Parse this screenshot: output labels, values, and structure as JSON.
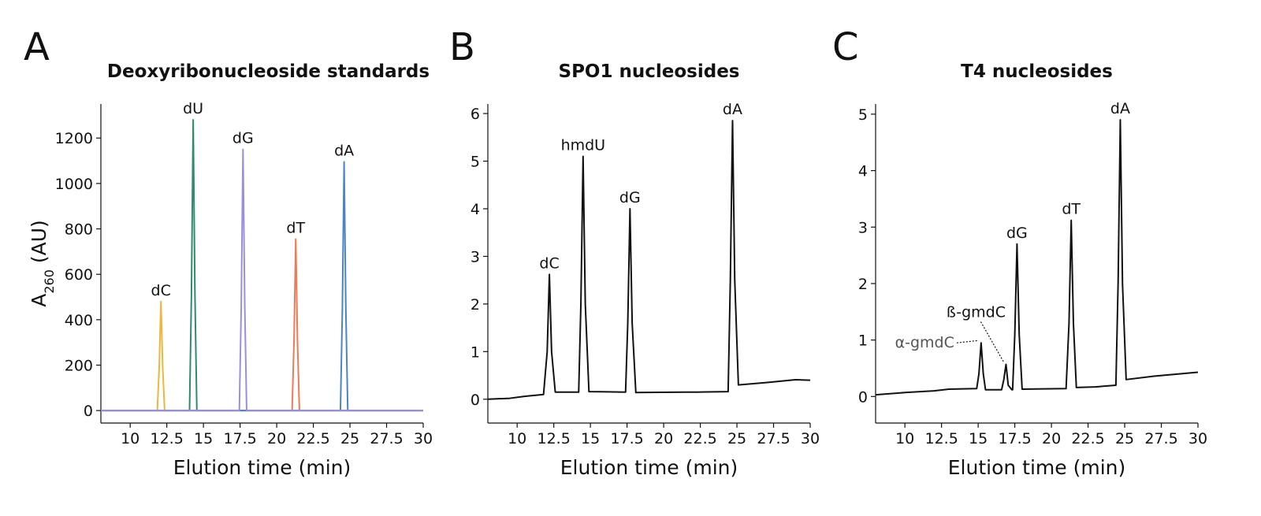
{
  "chart_data": [
    {
      "type": "line",
      "panel": "A",
      "title": "Deoxyribonucleoside standards",
      "xlabel": "Elution time (min)",
      "ylabel": [
        "A",
        "260",
        " (AU)"
      ],
      "xlim": [
        8,
        30
      ],
      "xticks": [
        10,
        12.5,
        15,
        17.5,
        20,
        22.5,
        25,
        27.5,
        30
      ],
      "ylim": [
        -55,
        1350
      ],
      "yticks": [
        0,
        200,
        400,
        600,
        800,
        1000,
        1200
      ],
      "series": [
        {
          "name": "dC",
          "color": "#f0b53c",
          "x": [
            8,
            11.85,
            11.98,
            12.1,
            12.22,
            12.35,
            30
          ],
          "values": [
            0,
            0,
            190,
            480,
            190,
            0,
            0
          ]
        },
        {
          "name": "dU",
          "color": "#2e8b6e",
          "x": [
            8,
            14.05,
            14.18,
            14.3,
            14.42,
            14.55,
            30
          ],
          "values": [
            0,
            0,
            510,
            1280,
            510,
            0,
            0
          ]
        },
        {
          "name": "dT",
          "color": "#ee7b55",
          "x": [
            8,
            21.05,
            21.18,
            21.3,
            21.42,
            21.55,
            30
          ],
          "values": [
            0,
            0,
            300,
            755,
            300,
            0,
            0
          ]
        },
        {
          "name": "dA",
          "color": "#4a86c5",
          "x": [
            8,
            24.35,
            24.48,
            24.6,
            24.72,
            24.85,
            30
          ],
          "values": [
            0,
            0,
            440,
            1095,
            440,
            0,
            0
          ]
        },
        {
          "name": "dG",
          "color": "#9b8fdc",
          "x": [
            8,
            17.45,
            17.58,
            17.7,
            17.82,
            17.95,
            30
          ],
          "values": [
            0,
            0,
            460,
            1150,
            460,
            0,
            0
          ]
        }
      ]
    },
    {
      "type": "line",
      "panel": "B",
      "title": "SPO1 nucleosides",
      "xlabel": "Elution time (min)",
      "xlim": [
        8,
        30
      ],
      "xticks": [
        10,
        12.5,
        15,
        17.5,
        20,
        22.5,
        25,
        27.5,
        30
      ],
      "ylim": [
        -0.5,
        6.2
      ],
      "yticks": [
        0,
        1,
        2,
        3,
        4,
        5,
        6
      ],
      "series": [
        {
          "color": "#111111",
          "x": [
            8,
            9.5,
            10.5,
            11.8,
            12.05,
            12.2,
            12.35,
            12.6,
            14.2,
            14.35,
            14.5,
            14.65,
            14.9,
            17.4,
            17.55,
            17.7,
            17.85,
            18.1,
            21.5,
            22.3,
            24.4,
            24.55,
            24.7,
            24.85,
            25.1,
            27,
            29,
            30
          ],
          "values": [
            0,
            0.02,
            0.06,
            0.1,
            1.0,
            2.62,
            1.0,
            0.15,
            0.15,
            2.0,
            5.1,
            2.0,
            0.16,
            0.15,
            1.6,
            4.0,
            1.6,
            0.14,
            0.15,
            0.15,
            0.16,
            2.5,
            5.85,
            2.5,
            0.3,
            0.35,
            0.41,
            0.4
          ]
        }
      ],
      "annotations": [
        {
          "text": "dC",
          "x": 12.2,
          "y": 2.62
        },
        {
          "text": "hmdU",
          "x": 14.5,
          "y": 5.1
        },
        {
          "text": "dG",
          "x": 17.7,
          "y": 4.0
        },
        {
          "text": "dA",
          "x": 24.7,
          "y": 5.85
        }
      ]
    },
    {
      "type": "line",
      "panel": "C",
      "title": "T4 nucleosides",
      "xlabel": "Elution time (min)",
      "xlim": [
        8,
        30
      ],
      "xticks": [
        10,
        12.5,
        15,
        17.5,
        20,
        22.5,
        25,
        27.5,
        30
      ],
      "ylim": [
        -0.47,
        5.18
      ],
      "yticks": [
        0,
        1,
        2,
        3,
        4,
        5
      ],
      "series": [
        {
          "color": "#111111",
          "x": [
            8,
            10,
            12,
            13,
            14.9,
            15.05,
            15.2,
            15.35,
            15.5,
            16.6,
            16.75,
            16.9,
            17.05,
            17.3,
            17.35,
            17.5,
            17.65,
            17.8,
            18,
            21,
            21.2,
            21.35,
            21.5,
            21.7,
            23,
            24.4,
            24.55,
            24.7,
            24.85,
            25.1,
            27,
            30
          ],
          "values": [
            0.03,
            0.07,
            0.1,
            0.13,
            0.14,
            0.4,
            0.95,
            0.4,
            0.12,
            0.12,
            0.3,
            0.57,
            0.2,
            0.12,
            0.12,
            1.1,
            2.7,
            1.1,
            0.13,
            0.14,
            1.3,
            3.12,
            1.3,
            0.16,
            0.17,
            0.2,
            2.0,
            4.9,
            2.0,
            0.3,
            0.36,
            0.43
          ]
        }
      ],
      "annotations": [
        {
          "text": "α-gmdC",
          "x": 15.2,
          "y": 0.95
        },
        {
          "text": "ß-gmdC",
          "x": 16.9,
          "y": 0.57
        },
        {
          "text": "dG",
          "x": 17.65,
          "y": 2.7
        },
        {
          "text": "dT",
          "x": 21.35,
          "y": 3.12
        },
        {
          "text": "dA",
          "x": 24.7,
          "y": 4.9
        }
      ]
    }
  ]
}
